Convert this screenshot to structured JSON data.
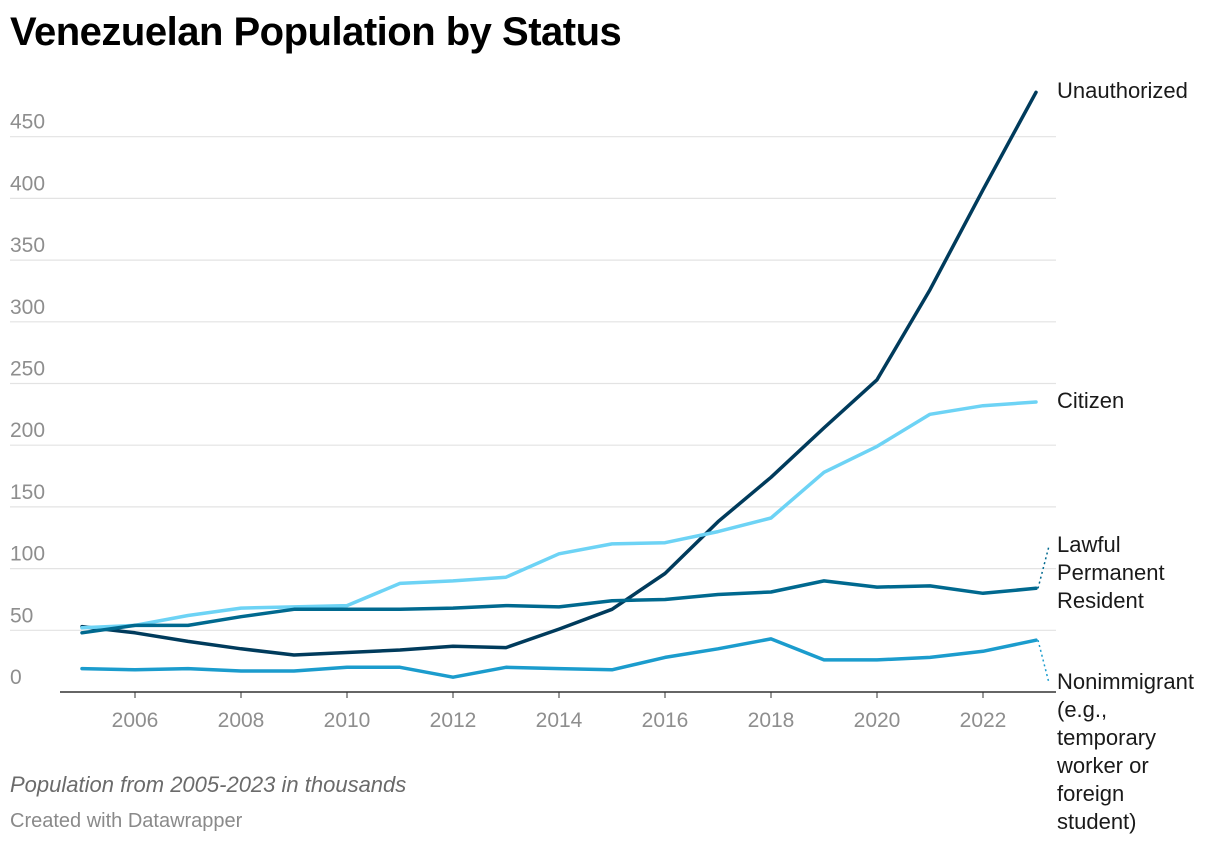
{
  "chart_data": {
    "type": "line",
    "title": "Venezuelan Population by Status",
    "note": "Population from 2005-2023 in thousands",
    "credit": "Created with Datawrapper",
    "xlabel": "",
    "ylabel": "",
    "x": [
      2005,
      2006,
      2007,
      2008,
      2009,
      2010,
      2011,
      2012,
      2013,
      2014,
      2015,
      2016,
      2017,
      2018,
      2019,
      2020,
      2021,
      2022,
      2023
    ],
    "xlim": [
      2005,
      2023
    ],
    "ylim": [
      0,
      490
    ],
    "x_ticks": [
      2006,
      2008,
      2010,
      2012,
      2014,
      2016,
      2018,
      2020,
      2022
    ],
    "y_ticks": [
      0,
      50,
      100,
      150,
      200,
      250,
      300,
      350,
      400,
      450
    ],
    "grid": true,
    "legend": "direct labels at right end of lines",
    "series": [
      {
        "name": "Unauthorized",
        "color": "#003b5c",
        "values": [
          53,
          48,
          41,
          35,
          30,
          32,
          34,
          37,
          36,
          51,
          67,
          96,
          138,
          174,
          214,
          253,
          326,
          407,
          486
        ],
        "label_lines": [
          "Unauthorized"
        ]
      },
      {
        "name": "Citizen",
        "color": "#6dd3f5",
        "values": [
          52,
          54,
          62,
          68,
          69,
          70,
          88,
          90,
          93,
          112,
          120,
          121,
          130,
          141,
          178,
          199,
          225,
          232,
          235
        ],
        "label_lines": [
          "Citizen"
        ]
      },
      {
        "name": "Lawful Permanent Resident",
        "color": "#00698f",
        "values": [
          48,
          54,
          54,
          61,
          67,
          67,
          67,
          68,
          70,
          69,
          74,
          75,
          79,
          81,
          90,
          85,
          86,
          80,
          84
        ],
        "label_lines": [
          "Lawful",
          "Permanent",
          "Resident"
        ]
      },
      {
        "name": "Nonimmigrant (e.g., temporary worker or foreign student)",
        "color": "#1b9ccd",
        "values": [
          19,
          18,
          19,
          17,
          17,
          20,
          20,
          12,
          20,
          19,
          18,
          28,
          35,
          43,
          26,
          26,
          28,
          33,
          42
        ],
        "label_lines": [
          "Nonimmigrant",
          "(e.g.,",
          "temporary",
          "worker or",
          "foreign",
          "student)"
        ]
      }
    ]
  }
}
